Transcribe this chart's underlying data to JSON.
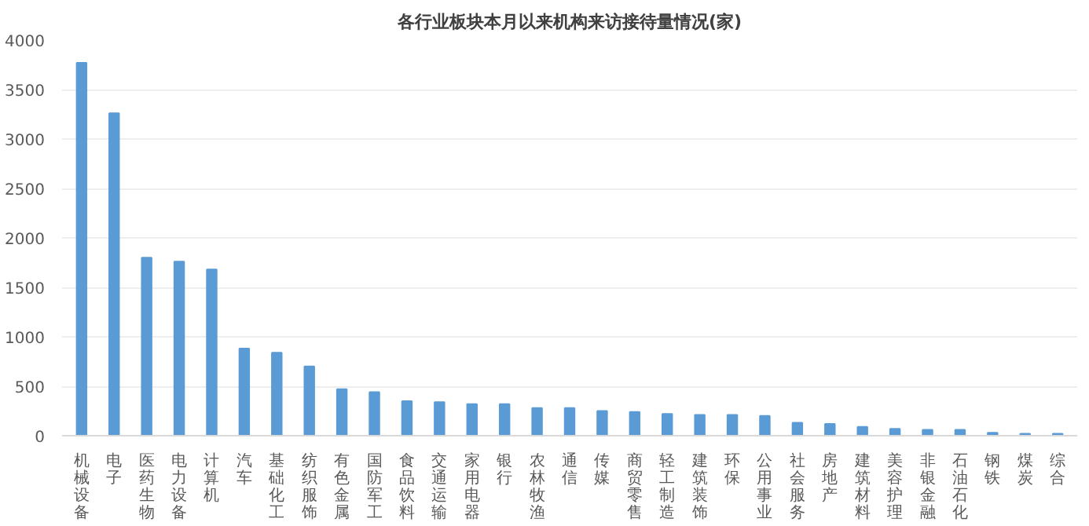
{
  "chart_data": {
    "type": "bar",
    "title": "各行业板块本月以来机构来访接待量情况(家)",
    "categories": [
      "机械设备",
      "电子",
      "医药生物",
      "电力设备",
      "计算机",
      "汽车",
      "基础化工",
      "纺织服饰",
      "有色金属",
      "国防军工",
      "食品饮料",
      "交通运输",
      "家用电器",
      "银行",
      "农林牧渔",
      "通信",
      "传媒",
      "商贸零售",
      "轻工制造",
      "建筑装饰",
      "环保",
      "公用事业",
      "社会服务",
      "房地产",
      "建筑材料",
      "美容护理",
      "非银金融",
      "石油石化",
      "钢铁",
      "煤炭",
      "综合"
    ],
    "values": [
      3770,
      3260,
      1800,
      1760,
      1680,
      880,
      840,
      700,
      470,
      440,
      350,
      340,
      320,
      320,
      280,
      280,
      250,
      240,
      220,
      210,
      210,
      200,
      130,
      120,
      90,
      70,
      60,
      60,
      30,
      20,
      20
    ],
    "color": "#5b9bd5",
    "ylim": [
      0,
      4000
    ],
    "yticks": [
      0,
      500,
      1000,
      1500,
      2000,
      2500,
      3000,
      3500,
      4000
    ],
    "grid": "y"
  }
}
